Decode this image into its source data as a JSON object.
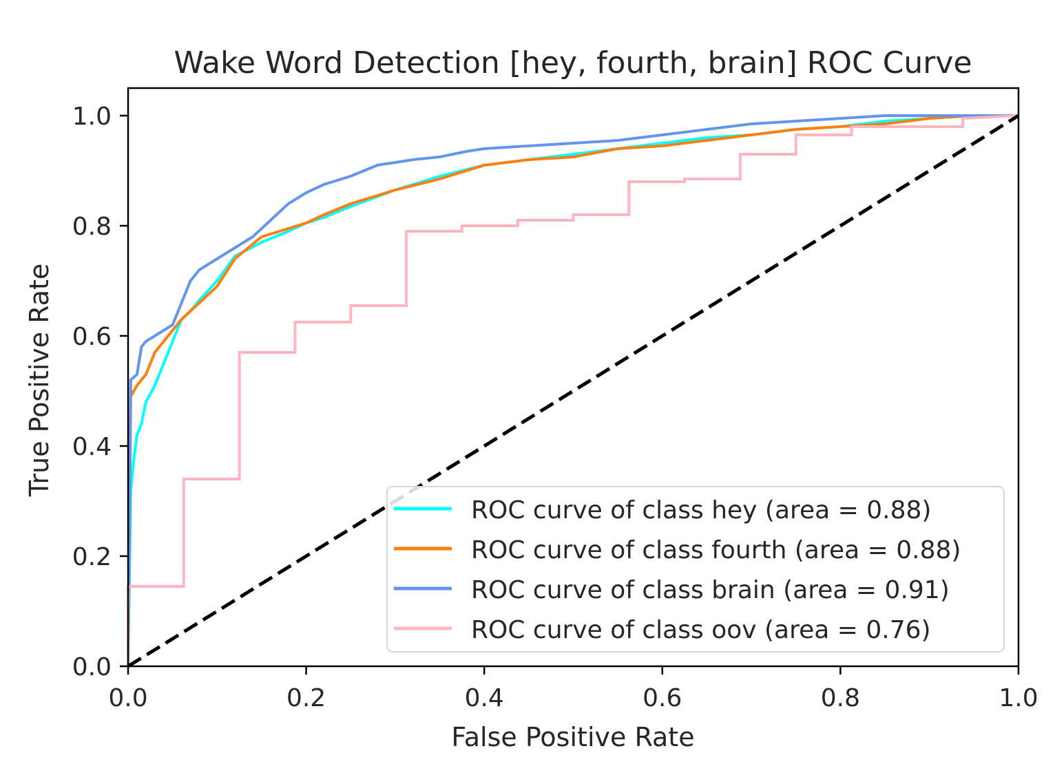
{
  "chart_data": {
    "type": "line",
    "title": "Wake Word Detection [hey, fourth, brain] ROC Curve",
    "xlabel": "False Positive Rate",
    "ylabel": "True Positive Rate",
    "xlim": [
      0.0,
      1.0
    ],
    "ylim": [
      0.0,
      1.05
    ],
    "xticks": [
      "0.0",
      "0.2",
      "0.4",
      "0.6",
      "0.8",
      "1.0"
    ],
    "yticks": [
      "0.0",
      "0.2",
      "0.4",
      "0.6",
      "0.8",
      "1.0"
    ],
    "grid": false,
    "legend_position": "lower right",
    "series": [
      {
        "name": "ROC curve of class hey (area = 0.88)",
        "color": "#00ffff",
        "dash": "solid",
        "step": false,
        "x": [
          0.0,
          0.003,
          0.006,
          0.01,
          0.015,
          0.02,
          0.03,
          0.04,
          0.05,
          0.06,
          0.07,
          0.08,
          0.1,
          0.12,
          0.15,
          0.18,
          0.2,
          0.22,
          0.25,
          0.3,
          0.35,
          0.4,
          0.45,
          0.5,
          0.55,
          0.6,
          0.65,
          0.7,
          0.75,
          0.8,
          0.85,
          0.9,
          0.95,
          1.0
        ],
        "y": [
          0.0,
          0.32,
          0.37,
          0.42,
          0.44,
          0.48,
          0.51,
          0.55,
          0.59,
          0.63,
          0.645,
          0.665,
          0.7,
          0.745,
          0.77,
          0.79,
          0.805,
          0.815,
          0.835,
          0.865,
          0.89,
          0.91,
          0.92,
          0.93,
          0.94,
          0.95,
          0.96,
          0.965,
          0.975,
          0.98,
          0.99,
          0.995,
          1.0,
          1.0
        ]
      },
      {
        "name": "ROC curve of class fourth (area = 0.88)",
        "color": "#ff7f0e",
        "dash": "solid",
        "step": false,
        "x": [
          0.0,
          0.003,
          0.01,
          0.02,
          0.03,
          0.04,
          0.05,
          0.06,
          0.07,
          0.08,
          0.1,
          0.12,
          0.15,
          0.18,
          0.2,
          0.22,
          0.25,
          0.3,
          0.35,
          0.4,
          0.45,
          0.5,
          0.55,
          0.6,
          0.65,
          0.7,
          0.75,
          0.8,
          0.85,
          0.9,
          0.95,
          1.0
        ],
        "y": [
          0.0,
          0.49,
          0.51,
          0.53,
          0.57,
          0.59,
          0.61,
          0.63,
          0.645,
          0.66,
          0.69,
          0.74,
          0.78,
          0.795,
          0.805,
          0.82,
          0.84,
          0.865,
          0.885,
          0.91,
          0.92,
          0.925,
          0.94,
          0.945,
          0.955,
          0.965,
          0.975,
          0.98,
          0.985,
          0.995,
          1.0,
          1.0
        ]
      },
      {
        "name": "ROC curve of class brain (area = 0.91)",
        "color": "#6495ed",
        "dash": "solid",
        "step": false,
        "x": [
          0.0,
          0.003,
          0.01,
          0.015,
          0.02,
          0.03,
          0.04,
          0.05,
          0.06,
          0.07,
          0.08,
          0.09,
          0.1,
          0.12,
          0.14,
          0.16,
          0.18,
          0.2,
          0.22,
          0.25,
          0.28,
          0.3,
          0.32,
          0.35,
          0.38,
          0.4,
          0.45,
          0.5,
          0.55,
          0.6,
          0.65,
          0.7,
          0.75,
          0.8,
          0.85,
          0.9,
          0.95,
          1.0
        ],
        "y": [
          0.0,
          0.52,
          0.53,
          0.58,
          0.59,
          0.6,
          0.61,
          0.62,
          0.66,
          0.7,
          0.72,
          0.73,
          0.74,
          0.76,
          0.78,
          0.81,
          0.84,
          0.86,
          0.875,
          0.89,
          0.91,
          0.915,
          0.92,
          0.925,
          0.935,
          0.94,
          0.945,
          0.95,
          0.955,
          0.965,
          0.975,
          0.985,
          0.99,
          0.995,
          1.0,
          1.0,
          1.0,
          1.0
        ]
      },
      {
        "name": "ROC curve of class oov (area = 0.76)",
        "color": "#ffb6c1",
        "dash": "solid",
        "step": true,
        "x": [
          0.0,
          0.0,
          0.0625,
          0.0625,
          0.125,
          0.125,
          0.1875,
          0.1875,
          0.25,
          0.25,
          0.3125,
          0.3125,
          0.375,
          0.375,
          0.4375,
          0.4375,
          0.5,
          0.5,
          0.5625,
          0.5625,
          0.625,
          0.625,
          0.6875,
          0.6875,
          0.75,
          0.75,
          0.8125,
          0.8125,
          0.9375,
          0.9375,
          1.0
        ],
        "y": [
          0.0,
          0.145,
          0.145,
          0.34,
          0.34,
          0.57,
          0.57,
          0.625,
          0.625,
          0.655,
          0.655,
          0.79,
          0.79,
          0.8,
          0.8,
          0.81,
          0.81,
          0.82,
          0.82,
          0.88,
          0.88,
          0.885,
          0.885,
          0.93,
          0.93,
          0.965,
          0.965,
          0.98,
          0.98,
          0.995,
          1.0
        ]
      },
      {
        "name": "",
        "color": "#000000",
        "dash": "dashed",
        "step": false,
        "x": [
          0.0,
          1.0
        ],
        "y": [
          0.0,
          1.0
        ]
      }
    ]
  }
}
